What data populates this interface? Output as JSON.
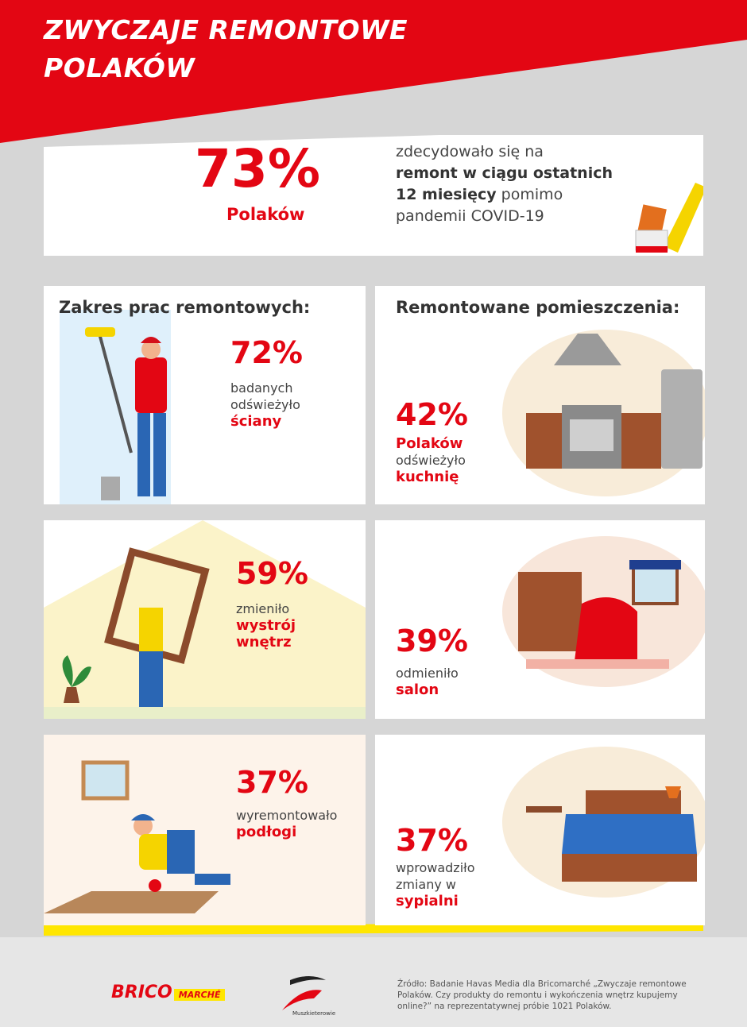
{
  "header": {
    "title_lines": [
      "ZWYCZAJE REMONTOWE",
      "POLAKÓW"
    ]
  },
  "headline": {
    "percent": "73%",
    "subject": "Polaków",
    "lines": [
      [
        {
          "text": "zdecydowało się na",
          "bold": false
        }
      ],
      [
        {
          "text": "remont w ciągu ostatnich",
          "bold": true
        }
      ],
      [
        {
          "text": "12 miesięcy",
          "bold": true
        },
        {
          "text": " pomimo",
          "bold": false
        }
      ],
      [
        {
          "text": "pandemii COVID-19",
          "bold": false
        }
      ]
    ]
  },
  "columns": [
    {
      "heading": "Zakres prac remontowych:",
      "items": [
        {
          "percent": "72%",
          "lines": [
            {
              "text": "badanych",
              "accent": false
            },
            {
              "text": "odświeżyło",
              "accent": false
            },
            {
              "text": "ściany",
              "accent": true
            }
          ]
        },
        {
          "percent": "59%",
          "lines": [
            {
              "text": "zmieniło",
              "accent": false
            },
            {
              "text": "wystrój",
              "accent": true
            },
            {
              "text": "wnętrz",
              "accent": true
            }
          ]
        },
        {
          "percent": "37%",
          "lines": [
            {
              "text": "wyremontowało",
              "accent": false
            },
            {
              "text": "podłogi",
              "accent": true
            }
          ]
        }
      ]
    },
    {
      "heading": "Remontowane pomieszczenia:",
      "items": [
        {
          "percent": "42%",
          "lines": [
            {
              "text": "Polaków",
              "accent": true
            },
            {
              "text": "odświeżyło",
              "accent": false
            },
            {
              "text": "kuchnię",
              "accent": true
            }
          ]
        },
        {
          "percent": "39%",
          "lines": [
            {
              "text": "odmieniło",
              "accent": false
            },
            {
              "text": "salon",
              "accent": true
            }
          ]
        },
        {
          "percent": "37%",
          "lines": [
            {
              "text": "wprowadziło",
              "accent": false
            },
            {
              "text": "zmiany w",
              "accent": false
            },
            {
              "text": "sypialni",
              "accent": true
            }
          ]
        }
      ]
    }
  ],
  "footer": {
    "logo_brico": "BRICO",
    "logo_marche": "MARCHÉ",
    "logo_muszkieterowie": "Muszkieterowie",
    "source_lines": [
      "Źródło: Badanie Havas Media dla Bricomarché „Zwyczaje remontowe",
      "Polaków. Czy produkty do remontu i wykończenia wnętrz kupujemy",
      "online?” na reprezentatywnej próbie 1021 Polaków."
    ]
  }
}
